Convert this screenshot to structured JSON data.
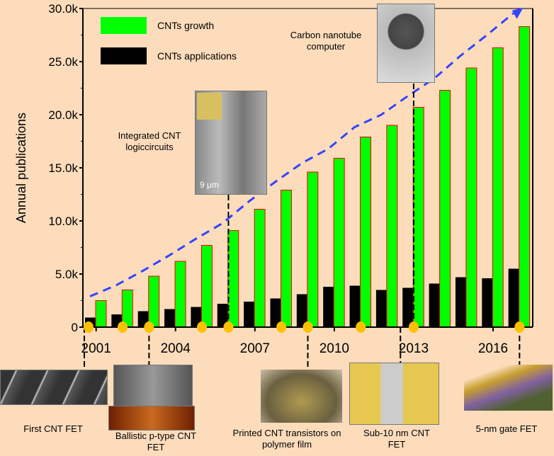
{
  "chart_data": {
    "type": "bar",
    "title": "",
    "xlabel": "",
    "ylabel": "Annual publications",
    "ylim": [
      0,
      30000
    ],
    "yticks": [
      "0",
      "5.0k",
      "10.0k",
      "15.0k",
      "20.0k",
      "25.0k",
      "30.0k"
    ],
    "categories": [
      2001,
      2002,
      2003,
      2004,
      2005,
      2006,
      2007,
      2008,
      2009,
      2010,
      2011,
      2012,
      2013,
      2014,
      2015,
      2016,
      2017
    ],
    "xtick_labels": [
      "2001",
      "2004",
      "2007",
      "2010",
      "2013",
      "2016"
    ],
    "legend_position": "top-left",
    "series": [
      {
        "name": "CNTs applications",
        "color": "#000000",
        "values": [
          900,
          1200,
          1500,
          1700,
          1900,
          2200,
          2400,
          2700,
          3100,
          3800,
          3900,
          3500,
          3700,
          4100,
          4700,
          4600,
          5500
        ]
      },
      {
        "name": "CNTs growth",
        "color": "#00ff00",
        "values": [
          2500,
          3500,
          4800,
          6200,
          7700,
          9100,
          11100,
          12900,
          14600,
          15900,
          17900,
          19000,
          20700,
          22300,
          24400,
          26300,
          28300
        ]
      }
    ],
    "trend": {
      "style": "dashed-arrow",
      "color": "#3344ff"
    },
    "milestone_years": [
      2001,
      2002,
      2003,
      2005,
      2006,
      2008,
      2009,
      2011,
      2013,
      2017
    ],
    "annotations": [
      {
        "label": "Carbon nanotube computer",
        "year": 2013
      },
      {
        "label": "Integrated CNT logiccircuits",
        "year": 2006
      },
      {
        "label": "First CNT FET",
        "year": 2001
      },
      {
        "label": "Ballistic p-type CNT FET",
        "year": 2003
      },
      {
        "label": "Printed CNT transistors on polymer film",
        "year": 2009
      },
      {
        "label": "Sub-10 nm CNT FET",
        "year": 2012
      },
      {
        "label": "5-nm gate FET",
        "year": 2017
      }
    ],
    "inset_text": {
      "scale_bar": "9 μm"
    }
  }
}
